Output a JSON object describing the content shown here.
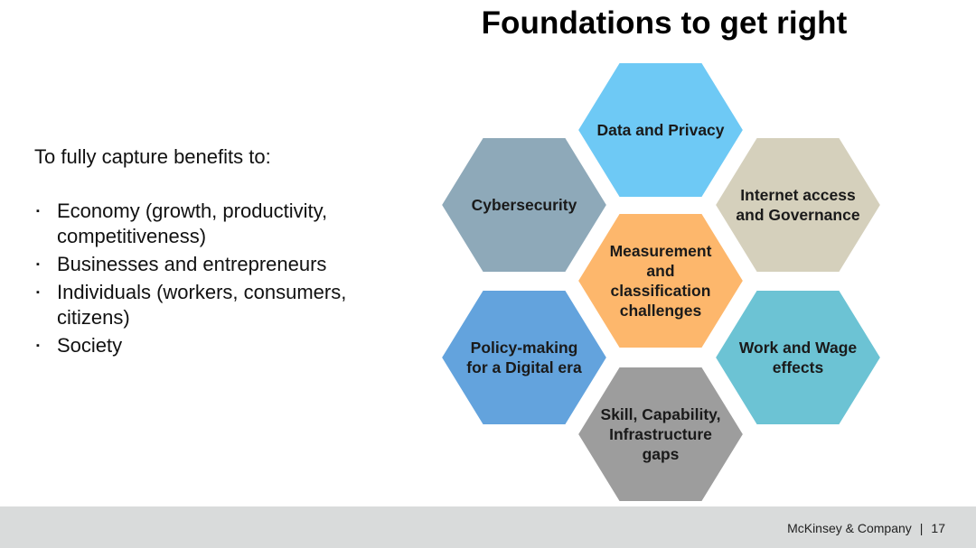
{
  "title": "Foundations to get right",
  "intro": "To fully capture benefits to:",
  "bullets": [
    "Economy (growth, productivity, competitiveness)",
    "Businesses and entrepreneurs",
    "Individuals (workers, consumers, citizens)",
    "Society"
  ],
  "bullet_marker": "▪",
  "hexagons": [
    {
      "label": "Data and Privacy",
      "color": "#6ec9f5"
    },
    {
      "label": "Cybersecurity",
      "color": "#8ea9b9"
    },
    {
      "label": "Internet access\nand Governance",
      "color": "#d5d0bc"
    },
    {
      "label": "Measurement\nand\nclassification\nchallenges",
      "color": "#fdb76c"
    },
    {
      "label": "Policy-making\nfor a Digital era",
      "color": "#63a3dd"
    },
    {
      "label": "Work and Wage\neffects",
      "color": "#6cc3d4"
    },
    {
      "label": "Skill, Capability,\nInfrastructure\ngaps",
      "color": "#9d9d9d"
    }
  ],
  "footer": {
    "company": "McKinsey & Company",
    "separator": "|",
    "page_number": "17"
  }
}
